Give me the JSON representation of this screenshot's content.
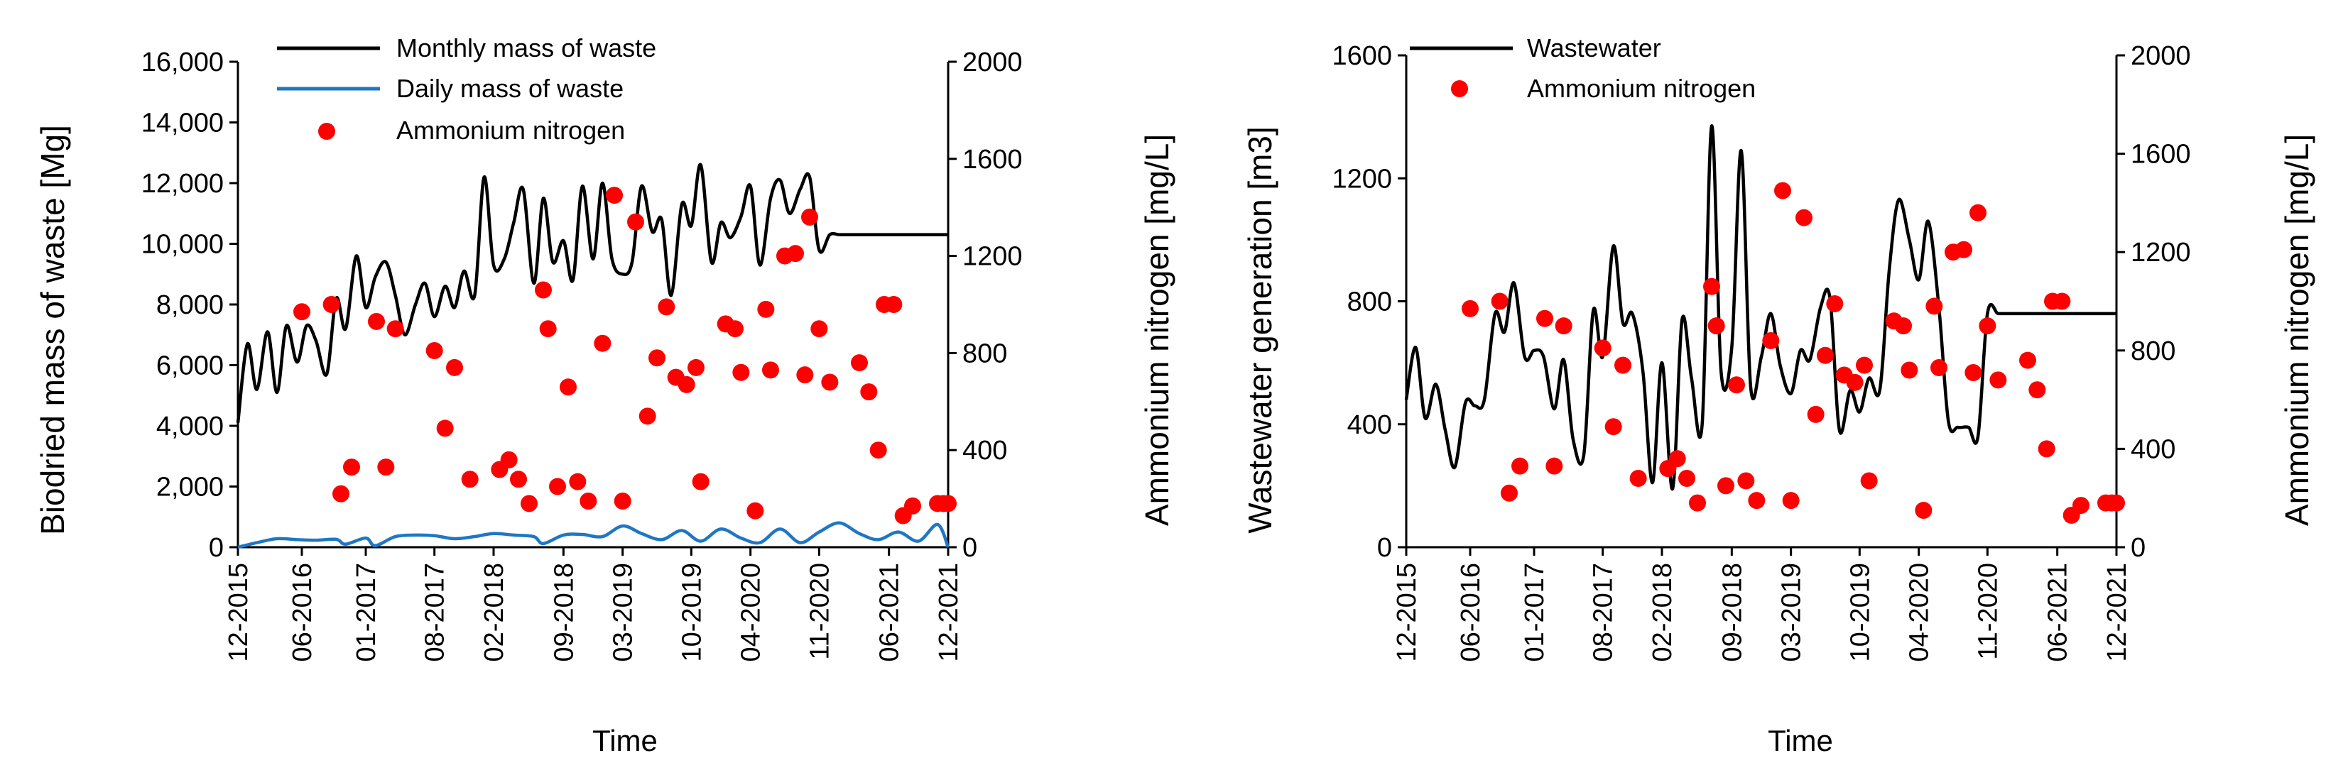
{
  "chart_data": [
    {
      "type": "line",
      "xlabel": "Time",
      "ylabel": "Biodried mass of waste [Mg]",
      "ylabel_right": "Ammonium nitrogen [mg/L]",
      "ylim": [
        0,
        16000
      ],
      "ylim_right": [
        0,
        2000
      ],
      "xlim": [
        2015.92,
        2021.92
      ],
      "y_ticks": [
        "0",
        "2,000",
        "4,000",
        "6,000",
        "8,000",
        "10,000",
        "12,000",
        "14,000",
        "16,000"
      ],
      "y_tick_values": [
        0,
        2000,
        4000,
        6000,
        8000,
        10000,
        12000,
        14000,
        16000
      ],
      "y2_ticks": [
        "0",
        "400",
        "800",
        "1200",
        "1600",
        "2000"
      ],
      "y2_tick_values": [
        0,
        400,
        800,
        1200,
        1600,
        2000
      ],
      "x_ticks": [
        "12-2015",
        "06-2016",
        "01-2017",
        "08-2017",
        "02-2018",
        "09-2018",
        "03-2019",
        "10-2019",
        "04-2020",
        "11-2020",
        "06-2021",
        "12-2021"
      ],
      "x_tick_values": [
        2015.92,
        2016.46,
        2017.0,
        2017.58,
        2018.08,
        2018.67,
        2019.17,
        2019.75,
        2020.25,
        2020.83,
        2021.42,
        2021.92
      ],
      "legend": [
        "Monthly mass of waste",
        "Daily mass of waste",
        "Ammonium nitrogen"
      ],
      "series": [
        {
          "name": "Monthly mass of waste",
          "axis": "left",
          "color": "#000000",
          "x": [
            2015.92,
            2016.0,
            2016.08,
            2016.17,
            2016.25,
            2016.33,
            2016.42,
            2016.5,
            2016.58,
            2016.67,
            2016.75,
            2016.83,
            2016.92,
            2017.0,
            2017.08,
            2017.17,
            2017.25,
            2017.33,
            2017.42,
            2017.5,
            2017.58,
            2017.67,
            2017.75,
            2017.83,
            2017.92,
            2018.0,
            2018.08,
            2018.17,
            2018.25,
            2018.33,
            2018.42,
            2018.5,
            2018.58,
            2018.67,
            2018.75,
            2018.83,
            2018.92,
            2019.0,
            2019.08,
            2019.17,
            2019.25,
            2019.33,
            2019.42,
            2019.5,
            2019.58,
            2019.67,
            2019.75,
            2019.83,
            2019.92,
            2020.0,
            2020.08,
            2020.17,
            2020.25,
            2020.33,
            2020.42,
            2020.5,
            2020.58,
            2020.67,
            2020.75,
            2020.83,
            2020.92,
            2021.0,
            2021.08,
            2021.17,
            2021.25,
            2021.33,
            2021.42,
            2021.5,
            2021.58,
            2021.67,
            2021.75,
            2021.83,
            2021.92
          ],
          "y": [
            4100,
            6700,
            5200,
            7100,
            5100,
            7300,
            6100,
            7300,
            6800,
            5700,
            8200,
            7200,
            9600,
            7900,
            8900,
            9400,
            8300,
            7000,
            8000,
            8700,
            7600,
            8600,
            7900,
            9100,
            8300,
            12200,
            9300,
            9500,
            10700,
            11800,
            8700,
            11500,
            9400,
            10100,
            8800,
            11900,
            9500,
            12000,
            9500,
            9000,
            9400,
            11900,
            10400,
            10800,
            8300,
            11300,
            10600,
            12600,
            9400,
            10700,
            10200,
            10900,
            11900,
            9300,
            11500,
            12100,
            11000,
            11800,
            12200,
            9800,
            10300,
            10300,
            10300,
            10300,
            10300,
            10300,
            10300,
            10300,
            10300,
            10300,
            10300,
            10300,
            10300
          ]
        },
        {
          "name": "Daily mass of waste",
          "axis": "left",
          "color": "#1f77c4",
          "x": [
            2015.92,
            2016.08,
            2016.25,
            2016.42,
            2016.58,
            2016.75,
            2016.83,
            2017.0,
            2017.08,
            2017.25,
            2017.42,
            2017.58,
            2017.75,
            2017.92,
            2018.08,
            2018.25,
            2018.42,
            2018.5,
            2018.67,
            2018.83,
            2019.0,
            2019.17,
            2019.33,
            2019.5,
            2019.67,
            2019.83,
            2020.0,
            2020.17,
            2020.33,
            2020.5,
            2020.67,
            2020.83,
            2021.0,
            2021.17,
            2021.33,
            2021.5,
            2021.67,
            2021.83,
            2021.92
          ],
          "y": [
            0,
            150,
            280,
            250,
            230,
            260,
            100,
            300,
            50,
            350,
            400,
            380,
            280,
            350,
            450,
            400,
            350,
            120,
            400,
            420,
            350,
            700,
            450,
            250,
            550,
            200,
            600,
            300,
            150,
            600,
            150,
            500,
            800,
            450,
            250,
            500,
            200,
            750,
            0
          ]
        },
        {
          "name": "Ammonium nitrogen",
          "axis": "right",
          "color": "#ff0000",
          "type": "scatter",
          "x": [
            2016.46,
            2016.71,
            2016.79,
            2016.88,
            2017.09,
            2017.17,
            2017.25,
            2017.58,
            2017.67,
            2017.75,
            2017.88,
            2018.13,
            2018.21,
            2018.29,
            2018.38,
            2018.5,
            2018.54,
            2018.62,
            2018.71,
            2018.79,
            2018.88,
            2019.0,
            2019.1,
            2019.17,
            2019.28,
            2019.38,
            2019.46,
            2019.54,
            2019.62,
            2019.71,
            2019.79,
            2019.83,
            2020.04,
            2020.12,
            2020.17,
            2020.29,
            2020.38,
            2020.42,
            2020.54,
            2020.63,
            2020.71,
            2020.75,
            2020.83,
            2020.92,
            2021.17,
            2021.25,
            2021.33,
            2021.38,
            2021.46,
            2021.54,
            2021.62,
            2021.83,
            2021.88,
            2021.92
          ],
          "y": [
            970,
            1000,
            220,
            330,
            930,
            330,
            900,
            810,
            490,
            740,
            280,
            320,
            360,
            280,
            180,
            1060,
            900,
            250,
            660,
            270,
            190,
            840,
            1450,
            190,
            1340,
            540,
            780,
            990,
            700,
            670,
            740,
            270,
            920,
            900,
            720,
            150,
            980,
            730,
            1200,
            1210,
            710,
            1360,
            900,
            680,
            760,
            640,
            400,
            1000,
            1000,
            130,
            170,
            180,
            180,
            180
          ]
        }
      ]
    },
    {
      "type": "line",
      "xlabel": "Time",
      "ylabel": "Wastewater generation [m3]",
      "ylabel_right": "Ammonium nitrogen [mg/L]",
      "ylim": [
        0,
        1600
      ],
      "ylim_right": [
        0,
        2000
      ],
      "xlim": [
        2015.92,
        2021.92
      ],
      "y_ticks": [
        "0",
        "400",
        "800",
        "1200",
        "1600"
      ],
      "y_tick_values": [
        0,
        400,
        800,
        1200,
        1600
      ],
      "y2_ticks": [
        "0",
        "400",
        "800",
        "1200",
        "1600",
        "2000"
      ],
      "y2_tick_values": [
        0,
        400,
        800,
        1200,
        1600,
        2000
      ],
      "x_ticks": [
        "12-2015",
        "06-2016",
        "01-2017",
        "08-2017",
        "02-2018",
        "09-2018",
        "03-2019",
        "10-2019",
        "04-2020",
        "11-2020",
        "06-2021",
        "12-2021"
      ],
      "x_tick_values": [
        2015.92,
        2016.46,
        2017.0,
        2017.58,
        2018.08,
        2018.67,
        2019.17,
        2019.75,
        2020.25,
        2020.83,
        2021.42,
        2021.92
      ],
      "legend": [
        "Wastewater",
        "Ammonium nitrogen"
      ],
      "series": [
        {
          "name": "Wastewater",
          "axis": "left",
          "color": "#000000",
          "x": [
            2015.92,
            2016.0,
            2016.08,
            2016.17,
            2016.25,
            2016.33,
            2016.42,
            2016.5,
            2016.58,
            2016.67,
            2016.75,
            2016.83,
            2016.92,
            2017.0,
            2017.08,
            2017.17,
            2017.25,
            2017.33,
            2017.42,
            2017.5,
            2017.58,
            2017.67,
            2017.75,
            2017.83,
            2017.92,
            2018.0,
            2018.08,
            2018.17,
            2018.25,
            2018.33,
            2018.42,
            2018.5,
            2018.58,
            2018.67,
            2018.75,
            2018.83,
            2018.92,
            2019.0,
            2019.08,
            2019.17,
            2019.25,
            2019.33,
            2019.42,
            2019.5,
            2019.58,
            2019.67,
            2019.75,
            2019.83,
            2019.92,
            2020.0,
            2020.08,
            2020.17,
            2020.25,
            2020.33,
            2020.42,
            2020.5,
            2020.58,
            2020.67,
            2020.75,
            2020.83,
            2020.92,
            2021.0,
            2021.08,
            2021.17,
            2021.25,
            2021.33,
            2021.42,
            2021.5,
            2021.58,
            2021.67,
            2021.75,
            2021.83,
            2021.92
          ],
          "y": [
            480,
            650,
            420,
            530,
            380,
            260,
            470,
            460,
            480,
            760,
            700,
            860,
            620,
            640,
            620,
            450,
            610,
            350,
            300,
            770,
            620,
            980,
            730,
            760,
            570,
            210,
            600,
            190,
            740,
            550,
            400,
            1370,
            570,
            650,
            1290,
            520,
            620,
            760,
            590,
            500,
            640,
            610,
            780,
            810,
            380,
            510,
            440,
            550,
            510,
            900,
            1130,
            1000,
            870,
            1060,
            780,
            410,
            390,
            390,
            360,
            760,
            760,
            760,
            760,
            760,
            760,
            760,
            760,
            760,
            760,
            760,
            760,
            760,
            760
          ]
        },
        {
          "name": "Ammonium nitrogen",
          "axis": "right",
          "color": "#ff0000",
          "type": "scatter",
          "x": [
            2016.46,
            2016.71,
            2016.79,
            2016.88,
            2017.09,
            2017.17,
            2017.25,
            2017.58,
            2017.67,
            2017.75,
            2017.88,
            2018.13,
            2018.21,
            2018.29,
            2018.38,
            2018.5,
            2018.54,
            2018.62,
            2018.71,
            2018.79,
            2018.88,
            2019.0,
            2019.1,
            2019.17,
            2019.28,
            2019.38,
            2019.46,
            2019.54,
            2019.62,
            2019.71,
            2019.79,
            2019.83,
            2020.04,
            2020.12,
            2020.17,
            2020.29,
            2020.38,
            2020.42,
            2020.54,
            2020.63,
            2020.71,
            2020.75,
            2020.83,
            2020.92,
            2021.17,
            2021.25,
            2021.33,
            2021.38,
            2021.46,
            2021.54,
            2021.62,
            2021.83,
            2021.88,
            2021.92
          ],
          "y": [
            970,
            1000,
            220,
            330,
            930,
            330,
            900,
            810,
            490,
            740,
            280,
            320,
            360,
            280,
            180,
            1060,
            900,
            250,
            660,
            270,
            190,
            840,
            1450,
            190,
            1340,
            540,
            780,
            990,
            700,
            670,
            740,
            270,
            920,
            900,
            720,
            150,
            980,
            730,
            1200,
            1210,
            710,
            1360,
            900,
            680,
            760,
            640,
            400,
            1000,
            1000,
            130,
            170,
            180,
            180,
            180
          ]
        }
      ]
    }
  ]
}
